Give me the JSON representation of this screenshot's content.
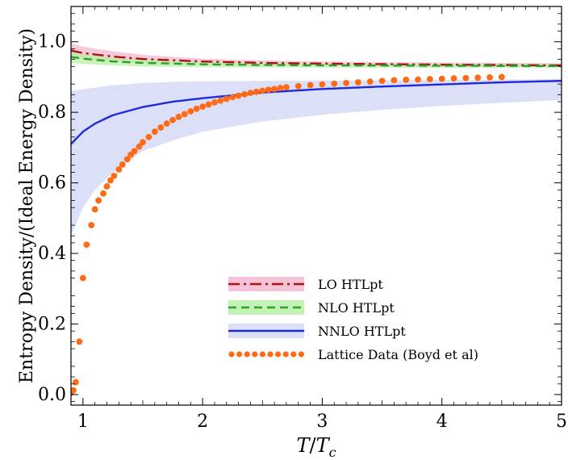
{
  "chart_data": {
    "type": "line",
    "xlabel": "T/T_c",
    "xlabel_parts": {
      "main": "T",
      "sep": "/",
      "sub_base": "T",
      "sub": "c"
    },
    "ylabel": "Entropy Density/(Ideal Energy Density)",
    "xlim": [
      0.9,
      5.0
    ],
    "ylim": [
      -0.03,
      1.1
    ],
    "grid": false,
    "legend_position": "bottom-right",
    "x_ticks": [
      1,
      2,
      3,
      4,
      5
    ],
    "x_tick_labels": [
      "1",
      "2",
      "3",
      "4",
      "5"
    ],
    "y_ticks": [
      0.0,
      0.2,
      0.4,
      0.6,
      0.8,
      1.0
    ],
    "y_tick_labels": [
      "0.0",
      "0.2",
      "0.4",
      "0.6",
      "0.8",
      "1.0"
    ],
    "series": [
      {
        "name": "LO HTLpt",
        "kind": "band-line",
        "color": "#b01010",
        "band_color": "#f2b8d0",
        "dash": "14,5,3,5",
        "x": [
          0.9,
          1.0,
          1.25,
          1.5,
          2.0,
          2.5,
          3.0,
          4.0,
          5.0
        ],
        "y": [
          0.975,
          0.968,
          0.958,
          0.951,
          0.944,
          0.94,
          0.938,
          0.935,
          0.933
        ],
        "lower": [
          0.955,
          0.95,
          0.943,
          0.939,
          0.935,
          0.933,
          0.931,
          0.929,
          0.928
        ],
        "upper": [
          0.995,
          0.986,
          0.973,
          0.963,
          0.952,
          0.947,
          0.944,
          0.941,
          0.939
        ]
      },
      {
        "name": "NLO HTLpt",
        "kind": "band-line",
        "color": "#2ca02c",
        "band_color": "#b8f0a8",
        "dash": "10,6",
        "x": [
          0.9,
          1.0,
          1.25,
          1.5,
          2.0,
          2.5,
          3.0,
          4.0,
          5.0
        ],
        "y": [
          0.957,
          0.952,
          0.944,
          0.94,
          0.936,
          0.934,
          0.933,
          0.932,
          0.931
        ],
        "lower": [
          0.94,
          0.937,
          0.933,
          0.93,
          0.928,
          0.927,
          0.927,
          0.926,
          0.926
        ],
        "upper": [
          0.974,
          0.967,
          0.955,
          0.95,
          0.944,
          0.941,
          0.939,
          0.938,
          0.937
        ]
      },
      {
        "name": "NNLO HTLpt",
        "kind": "band-line",
        "color": "#1f2bd6",
        "band_color": "#d6d9f7",
        "dash": "",
        "x": [
          0.9,
          1.0,
          1.1,
          1.25,
          1.5,
          1.75,
          2.0,
          2.5,
          3.0,
          3.5,
          4.0,
          4.5,
          5.0
        ],
        "y": [
          0.71,
          0.745,
          0.768,
          0.792,
          0.815,
          0.83,
          0.84,
          0.856,
          0.866,
          0.873,
          0.879,
          0.885,
          0.889
        ],
        "lower": [
          0.45,
          0.53,
          0.58,
          0.63,
          0.69,
          0.72,
          0.745,
          0.774,
          0.793,
          0.807,
          0.818,
          0.827,
          0.835
        ],
        "upper": [
          0.86,
          0.865,
          0.87,
          0.877,
          0.883,
          0.886,
          0.888,
          0.889,
          0.89,
          0.891,
          0.892,
          0.893,
          0.894
        ]
      },
      {
        "name": "Lattice Data (Boyd et al)",
        "kind": "scatter",
        "color": "#ff6a14",
        "x": [
          0.9,
          0.92,
          0.94,
          0.97,
          1.0,
          1.03,
          1.07,
          1.1,
          1.13,
          1.17,
          1.2,
          1.23,
          1.26,
          1.3,
          1.33,
          1.37,
          1.4,
          1.43,
          1.47,
          1.5,
          1.55,
          1.6,
          1.65,
          1.7,
          1.75,
          1.8,
          1.85,
          1.9,
          1.95,
          2.0,
          2.05,
          2.1,
          2.15,
          2.2,
          2.25,
          2.3,
          2.35,
          2.4,
          2.45,
          2.5,
          2.55,
          2.6,
          2.65,
          2.7,
          2.8,
          2.9,
          3.0,
          3.1,
          3.2,
          3.3,
          3.4,
          3.5,
          3.6,
          3.7,
          3.8,
          3.9,
          4.0,
          4.1,
          4.2,
          4.3,
          4.4,
          4.5
        ],
        "y": [
          0.005,
          0.012,
          0.035,
          0.15,
          0.33,
          0.425,
          0.48,
          0.525,
          0.55,
          0.57,
          0.59,
          0.607,
          0.62,
          0.638,
          0.652,
          0.667,
          0.68,
          0.69,
          0.703,
          0.715,
          0.73,
          0.745,
          0.757,
          0.768,
          0.778,
          0.787,
          0.795,
          0.803,
          0.81,
          0.816,
          0.822,
          0.828,
          0.833,
          0.838,
          0.843,
          0.847,
          0.851,
          0.855,
          0.858,
          0.861,
          0.864,
          0.866,
          0.869,
          0.871,
          0.874,
          0.877,
          0.879,
          0.881,
          0.883,
          0.885,
          0.887,
          0.889,
          0.891,
          0.892,
          0.893,
          0.894,
          0.895,
          0.896,
          0.897,
          0.898,
          0.899,
          0.9
        ]
      }
    ]
  }
}
